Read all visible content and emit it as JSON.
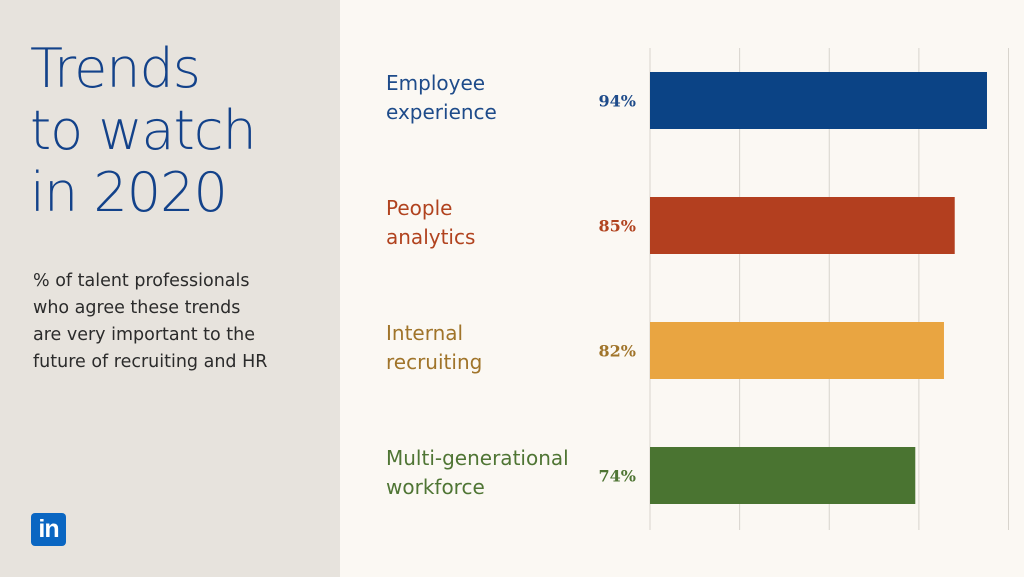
{
  "title_lines": [
    "Trends",
    "to watch",
    "in 2020"
  ],
  "subtitle_lines": [
    "% of talent professionals",
    "who agree these trends",
    "are very important to the",
    "future of recruiting and HR"
  ],
  "logo_text": "in",
  "colors": {
    "background": "#fbf8f3",
    "panel": "#e7e3dd",
    "title": "#13428a",
    "grid": "#d8d4cd"
  },
  "chart_data": {
    "type": "bar",
    "orientation": "horizontal",
    "categories": [
      [
        "Employee",
        "experience"
      ],
      [
        "People",
        "analytics"
      ],
      [
        "Internal",
        "recruiting"
      ],
      [
        "Multi-generational",
        "workforce"
      ]
    ],
    "values": [
      94,
      85,
      82,
      74
    ],
    "value_labels": [
      "94%",
      "85%",
      "82%",
      "74%"
    ],
    "bar_colors": [
      "#0b4385",
      "#b33f1f",
      "#e9a541",
      "#4a7431"
    ],
    "label_colors": [
      "#1e4b8a",
      "#b1431f",
      "#a0742a",
      "#4f7534"
    ],
    "xlim": [
      0,
      100
    ],
    "grid": true,
    "legend": "none"
  }
}
